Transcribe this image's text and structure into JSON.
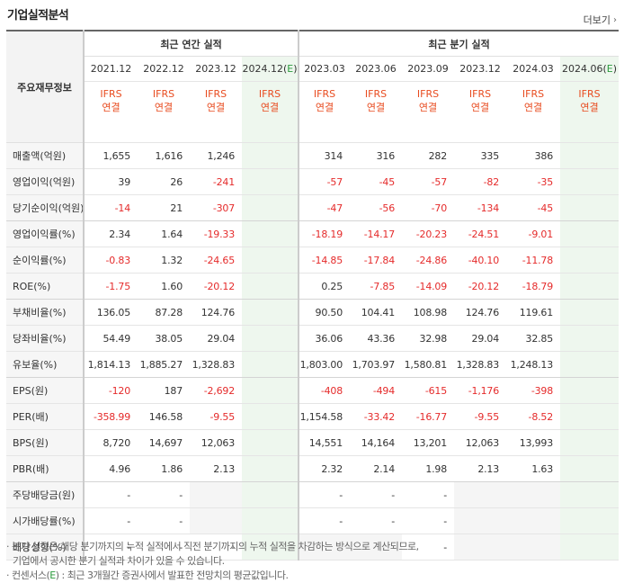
{
  "header": {
    "title": "기업실적분석",
    "more_label": "더보기"
  },
  "table": {
    "label_header": "주요재무정보",
    "group_headers": {
      "annual": "최근 연간 실적",
      "quarterly": "최근 분기 실적"
    },
    "annual_periods": [
      "2021.12",
      "2022.12",
      "2023.12",
      "2024.12(E)"
    ],
    "quarter_periods": [
      "2023.03",
      "2023.06",
      "2023.09",
      "2023.12",
      "2024.03",
      "2024.06(E)"
    ],
    "ifrs_top": "IFRS",
    "ifrs_bottom": "연결",
    "rows": [
      {
        "label": "매출액(억원)",
        "annual": [
          "1,655",
          "1,616",
          "1,246",
          ""
        ],
        "quarter": [
          "314",
          "316",
          "282",
          "335",
          "386",
          ""
        ]
      },
      {
        "label": "영업이익(억원)",
        "annual": [
          "39",
          "26",
          "-241",
          ""
        ],
        "quarter": [
          "-57",
          "-45",
          "-57",
          "-82",
          "-35",
          ""
        ]
      },
      {
        "label": "당기순이익(억원)",
        "annual": [
          "-14",
          "21",
          "-307",
          ""
        ],
        "quarter": [
          "-47",
          "-56",
          "-70",
          "-134",
          "-45",
          ""
        ]
      },
      {
        "label": "영업이익률(%)",
        "annual": [
          "2.34",
          "1.64",
          "-19.33",
          ""
        ],
        "quarter": [
          "-18.19",
          "-14.17",
          "-20.23",
          "-24.51",
          "-9.01",
          ""
        ]
      },
      {
        "label": "순이익률(%)",
        "annual": [
          "-0.83",
          "1.32",
          "-24.65",
          ""
        ],
        "quarter": [
          "-14.85",
          "-17.84",
          "-24.86",
          "-40.10",
          "-11.78",
          ""
        ]
      },
      {
        "label": "ROE(%)",
        "annual": [
          "-1.75",
          "1.60",
          "-20.12",
          ""
        ],
        "quarter": [
          "0.25",
          "-7.85",
          "-14.09",
          "-20.12",
          "-18.79",
          ""
        ]
      },
      {
        "label": "부채비율(%)",
        "annual": [
          "136.05",
          "87.28",
          "124.76",
          ""
        ],
        "quarter": [
          "90.50",
          "104.41",
          "108.98",
          "124.76",
          "119.61",
          ""
        ]
      },
      {
        "label": "당좌비율(%)",
        "annual": [
          "54.49",
          "38.05",
          "29.04",
          ""
        ],
        "quarter": [
          "36.06",
          "43.36",
          "32.98",
          "29.04",
          "32.85",
          ""
        ]
      },
      {
        "label": "유보율(%)",
        "annual": [
          "1,814.13",
          "1,885.27",
          "1,328.83",
          ""
        ],
        "quarter": [
          "1,803.00",
          "1,703.97",
          "1,580.81",
          "1,328.83",
          "1,248.13",
          ""
        ]
      },
      {
        "label": "EPS(원)",
        "annual": [
          "-120",
          "187",
          "-2,692",
          ""
        ],
        "quarter": [
          "-408",
          "-494",
          "-615",
          "-1,176",
          "-398",
          ""
        ]
      },
      {
        "label": "PER(배)",
        "annual": [
          "-358.99",
          "146.58",
          "-9.55",
          ""
        ],
        "quarter": [
          "1,154.58",
          "-33.42",
          "-16.77",
          "-9.55",
          "-8.52",
          ""
        ]
      },
      {
        "label": "BPS(원)",
        "annual": [
          "8,720",
          "14,697",
          "12,063",
          ""
        ],
        "quarter": [
          "14,551",
          "14,164",
          "13,201",
          "12,063",
          "13,993",
          ""
        ]
      },
      {
        "label": "PBR(배)",
        "annual": [
          "4.96",
          "1.86",
          "2.13",
          ""
        ],
        "quarter": [
          "2.32",
          "2.14",
          "1.98",
          "2.13",
          "1.63",
          ""
        ]
      },
      {
        "label": "주당배당금(원)",
        "annual": [
          "-",
          "-",
          "",
          ""
        ],
        "quarter": [
          "-",
          "-",
          "-",
          "",
          "",
          ""
        ]
      },
      {
        "label": "시가배당률(%)",
        "annual": [
          "-",
          "-",
          "",
          ""
        ],
        "quarter": [
          "-",
          "-",
          "-",
          "",
          "",
          ""
        ]
      },
      {
        "label": "배당성향(%)",
        "annual": [
          "-",
          "-",
          "-",
          ""
        ],
        "quarter": [
          "",
          "",
          "-",
          "",
          "",
          ""
        ]
      }
    ]
  },
  "notes": [
    "· 분기 실적은 해당 분기까지의 누적 실적에서 직전 분기까지의 누적 실적을 차감하는 방식으로 계산되므로,",
    "  기업에서 공시한 분기 실적과 차이가 있을 수 있습니다.",
    "· 컨센서스(E) : 최근 3개월간 증권사에서 발표한 전망치의 평균값입니다."
  ],
  "colors": {
    "negative": "#e52b2b",
    "ifrs": "#e84b1f",
    "estimate_bg": "#eef7ee",
    "estimate_mark": "#2a9a3c"
  }
}
